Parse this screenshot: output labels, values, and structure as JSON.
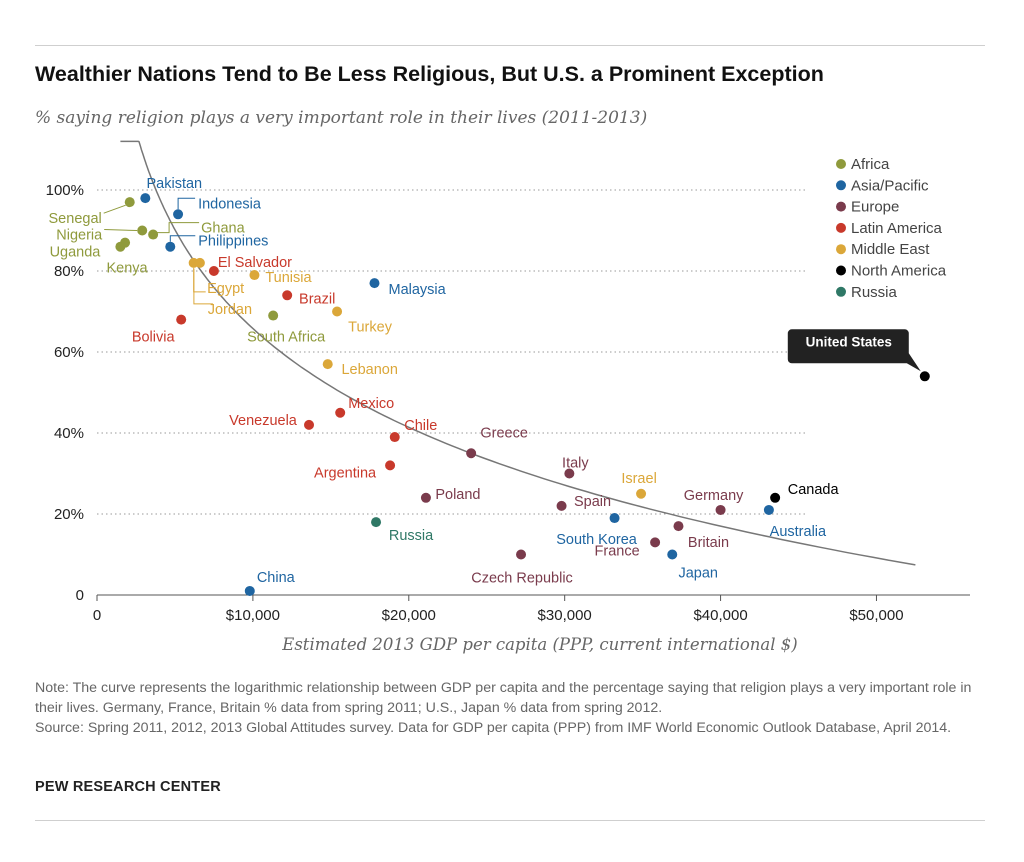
{
  "chart_data": {
    "type": "scatter",
    "title": "Wealthier Nations Tend to Be Less Religious, But U.S. a Prominent Exception",
    "subtitle": "% saying religion plays a very important role in their lives (2011-2013)",
    "xlabel": "Estimated 2013 GDP per capita (PPP, current international $)",
    "ylabel": "",
    "xlim": [
      0,
      56000
    ],
    "ylim": [
      0,
      100
    ],
    "x_ticks": [
      {
        "value": 0,
        "label": "0"
      },
      {
        "value": 10000,
        "label": "$10,000"
      },
      {
        "value": 20000,
        "label": "$20,000"
      },
      {
        "value": 30000,
        "label": "$30,000"
      },
      {
        "value": 40000,
        "label": "$40,000"
      },
      {
        "value": 50000,
        "label": "$50,000"
      }
    ],
    "y_ticks": [
      {
        "value": 0,
        "label": "0"
      },
      {
        "value": 20,
        "label": "20%"
      },
      {
        "value": 40,
        "label": "40%"
      },
      {
        "value": 60,
        "label": "60%"
      },
      {
        "value": 80,
        "label": "80%"
      },
      {
        "value": 100,
        "label": "100%"
      }
    ],
    "grid": "horizontal dotted",
    "legend_position": "top-right",
    "regions": [
      {
        "name": "Africa",
        "color": "#8f9a3c"
      },
      {
        "name": "Asia/Pacific",
        "color": "#1f65a1"
      },
      {
        "name": "Europe",
        "color": "#7a3b4c"
      },
      {
        "name": "Latin America",
        "color": "#c8392b"
      },
      {
        "name": "Middle East",
        "color": "#dba739"
      },
      {
        "name": "North America",
        "color": "#000000"
      },
      {
        "name": "Russia",
        "color": "#2f7866"
      }
    ],
    "points": [
      {
        "country": "Senegal",
        "region": "Africa",
        "x": 2100,
        "y": 97
      },
      {
        "country": "Nigeria",
        "region": "Africa",
        "x": 2900,
        "y": 90
      },
      {
        "country": "Ghana",
        "region": "Africa",
        "x": 3600,
        "y": 89
      },
      {
        "country": "Uganda",
        "region": "Africa",
        "x": 1500,
        "y": 86
      },
      {
        "country": "Kenya",
        "region": "Africa",
        "x": 1800,
        "y": 87
      },
      {
        "country": "South Africa",
        "region": "Africa",
        "x": 11300,
        "y": 69
      },
      {
        "country": "Pakistan",
        "region": "Asia/Pacific",
        "x": 3100,
        "y": 98
      },
      {
        "country": "Indonesia",
        "region": "Asia/Pacific",
        "x": 5200,
        "y": 94
      },
      {
        "country": "Philippines",
        "region": "Asia/Pacific",
        "x": 4700,
        "y": 86
      },
      {
        "country": "Malaysia",
        "region": "Asia/Pacific",
        "x": 17800,
        "y": 77
      },
      {
        "country": "China",
        "region": "Asia/Pacific",
        "x": 9800,
        "y": 1
      },
      {
        "country": "South Korea",
        "region": "Asia/Pacific",
        "x": 33200,
        "y": 19
      },
      {
        "country": "Japan",
        "region": "Asia/Pacific",
        "x": 36900,
        "y": 10
      },
      {
        "country": "Australia",
        "region": "Asia/Pacific",
        "x": 43100,
        "y": 21
      },
      {
        "country": "Greece",
        "region": "Europe",
        "x": 24000,
        "y": 35
      },
      {
        "country": "Italy",
        "region": "Europe",
        "x": 30300,
        "y": 30
      },
      {
        "country": "Poland",
        "region": "Europe",
        "x": 21100,
        "y": 24
      },
      {
        "country": "Spain",
        "region": "Europe",
        "x": 29800,
        "y": 22
      },
      {
        "country": "Germany",
        "region": "Europe",
        "x": 40000,
        "y": 21
      },
      {
        "country": "Britain",
        "region": "Europe",
        "x": 37300,
        "y": 17
      },
      {
        "country": "France",
        "region": "Europe",
        "x": 35800,
        "y": 13
      },
      {
        "country": "Czech Republic",
        "region": "Europe",
        "x": 27200,
        "y": 10
      },
      {
        "country": "El Salvador",
        "region": "Latin America",
        "x": 7500,
        "y": 80
      },
      {
        "country": "Brazil",
        "region": "Latin America",
        "x": 12200,
        "y": 74
      },
      {
        "country": "Bolivia",
        "region": "Latin America",
        "x": 5400,
        "y": 68
      },
      {
        "country": "Mexico",
        "region": "Latin America",
        "x": 15600,
        "y": 45
      },
      {
        "country": "Venezuela",
        "region": "Latin America",
        "x": 13600,
        "y": 42
      },
      {
        "country": "Chile",
        "region": "Latin America",
        "x": 19100,
        "y": 39
      },
      {
        "country": "Argentina",
        "region": "Latin America",
        "x": 18800,
        "y": 32
      },
      {
        "country": "Egypt",
        "region": "Middle East",
        "x": 6200,
        "y": 82
      },
      {
        "country": "Jordan",
        "region": "Middle East",
        "x": 6600,
        "y": 82
      },
      {
        "country": "Tunisia",
        "region": "Middle East",
        "x": 10100,
        "y": 79
      },
      {
        "country": "Turkey",
        "region": "Middle East",
        "x": 15400,
        "y": 70
      },
      {
        "country": "Lebanon",
        "region": "Middle East",
        "x": 14800,
        "y": 57
      },
      {
        "country": "Israel",
        "region": "Middle East",
        "x": 34900,
        "y": 25
      },
      {
        "country": "United States",
        "region": "North America",
        "x": 53100,
        "y": 54
      },
      {
        "country": "Canada",
        "region": "North America",
        "x": 43500,
        "y": 24
      },
      {
        "country": "Russia",
        "region": "Russia",
        "x": 17900,
        "y": 18
      }
    ],
    "trend_curve": {
      "type": "logarithmic",
      "x_range": [
        1500,
        52500
      ]
    }
  },
  "note": "Note: The curve represents the logarithmic relationship between GDP per capita and the percentage saying that religion plays a very important role in their lives. Germany, France, Britain % data from spring 2011; U.S., Japan % data from spring 2012.",
  "source": "Source: Spring 2011, 2012, 2013 Global Attitudes survey. Data for GDP per capita (PPP) from IMF World Economic Outlook Database, April 2014.",
  "org": "PEW RESEARCH CENTER"
}
